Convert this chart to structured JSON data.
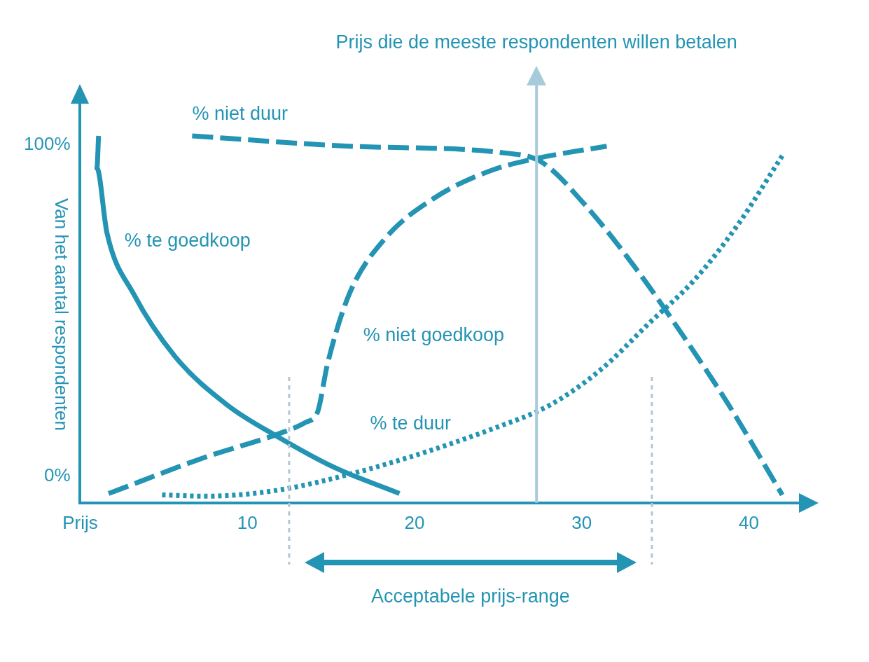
{
  "chart_data": {
    "type": "line",
    "ylabel": "Van het aantal respondenten",
    "xlim": [
      0,
      43
    ],
    "ylim": [
      -8,
      112
    ],
    "xticks": [
      {
        "value": 0,
        "label": "Prijs"
      },
      10,
      20,
      30,
      40
    ],
    "yticks": [
      {
        "value": 0,
        "label": "0%"
      },
      {
        "value": 100,
        "label": "100%"
      }
    ],
    "grid": false,
    "legend": false,
    "marker": "none",
    "series": [
      {
        "name": "% te goedkoop",
        "color": "#2394b3",
        "line_style": "solid",
        "x": [
          1.1,
          1,
          1.6,
          3.2,
          5.7,
          8.8,
          11.8,
          15.2,
          19.1
        ],
        "values": [
          102.7,
          93,
          73.5,
          55,
          36,
          21.5,
          12,
          2.7,
          -5.2
        ]
      },
      {
        "name": "% niet goedkoop",
        "color": "#2394b3",
        "line_style": "dashed",
        "x": [
          1.7,
          7.5,
          11.8,
          13.5,
          14.2,
          14.8,
          16.1,
          18.2,
          21.2,
          24.6,
          27.4,
          31.5
        ],
        "values": [
          -5.2,
          5.8,
          12.7,
          16.3,
          19.4,
          34,
          55,
          71.5,
          84,
          92.3,
          96,
          99.6
        ]
      },
      {
        "name": "% niet duur",
        "color": "#2394b3",
        "line_style": "dashed",
        "x": [
          6.7,
          16.1,
          25.5,
          27.6,
          30.2,
          33.2,
          35.8,
          38.8,
          42
        ],
        "values": [
          102.7,
          99.6,
          97.5,
          94.8,
          81.9,
          63,
          44.4,
          21.5,
          -5.6
        ]
      },
      {
        "name": "% te duur",
        "color": "#2394b3",
        "line_style": "dotted",
        "x": [
          4.9,
          7.5,
          11.8,
          16.1,
          20.4,
          24.6,
          28.1,
          31.1,
          34.1,
          36.7,
          39.3,
          42.1
        ],
        "values": [
          -5.6,
          -6,
          -4.2,
          0.6,
          6.9,
          14.2,
          21.5,
          32,
          46.5,
          59,
          75.6,
          97.5
        ]
      }
    ],
    "ref_lines": [
      {
        "axis": "x",
        "value": 27.3,
        "label": "Prijs die de meeste respondenten willen betalen",
        "color": "#a8cbdb"
      },
      {
        "axis": "x",
        "value": 12.5,
        "color": "#b3c6d2",
        "line_style": "dotted"
      },
      {
        "axis": "x",
        "value": 34.2,
        "color": "#b3c6d2",
        "line_style": "dotted"
      }
    ],
    "annotations": [
      "Acceptabele prijs-range"
    ]
  }
}
